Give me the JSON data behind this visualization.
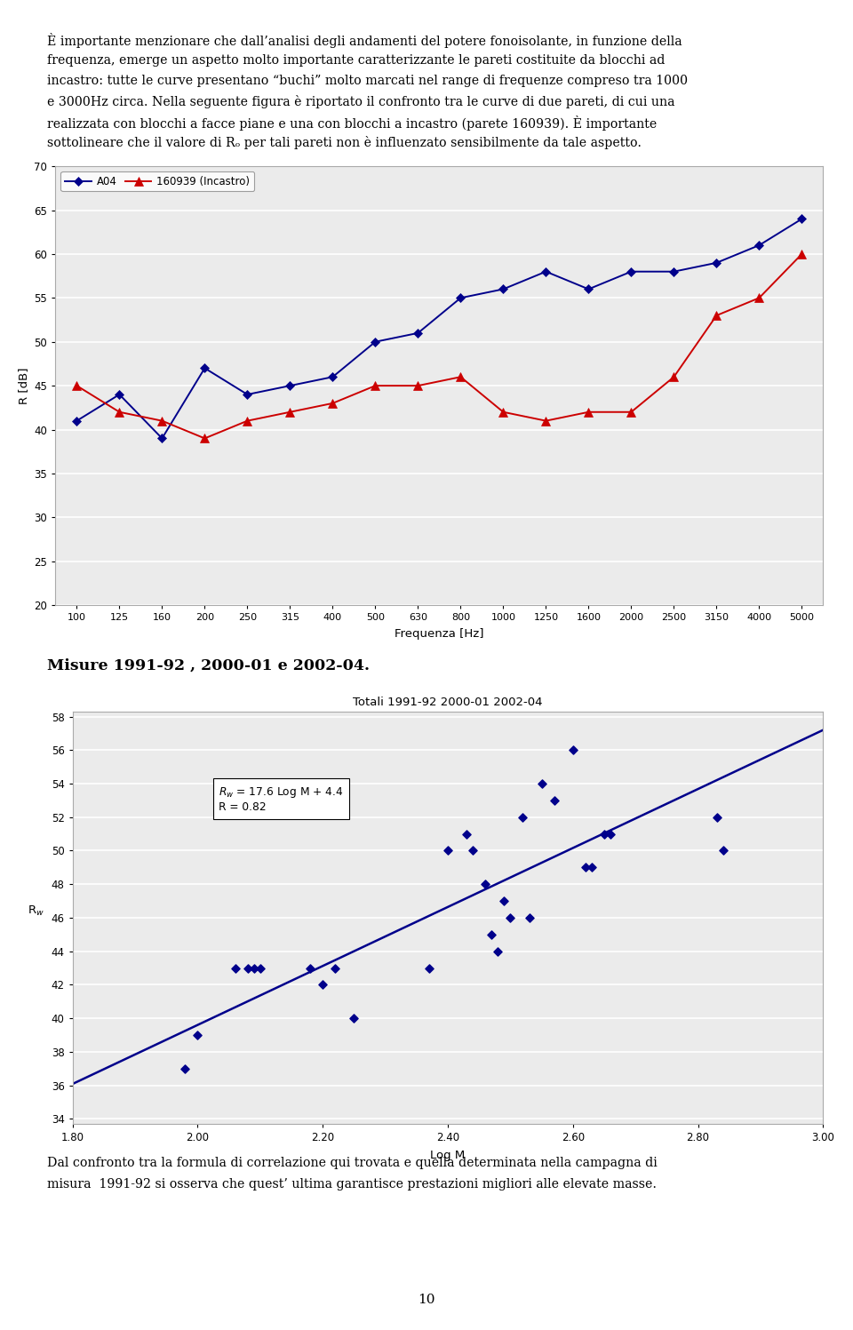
{
  "chart1": {
    "freq": [
      100,
      125,
      160,
      200,
      250,
      315,
      400,
      500,
      630,
      800,
      1000,
      1250,
      1600,
      2000,
      2500,
      3150,
      4000,
      5000
    ],
    "A04": [
      41,
      44,
      39,
      47,
      44,
      45,
      46,
      50,
      51,
      55,
      56,
      58,
      56,
      58,
      58,
      59,
      61,
      64
    ],
    "incastro": [
      45,
      42,
      41,
      39,
      41,
      42,
      43,
      45,
      45,
      46,
      42,
      41,
      42,
      42,
      46,
      53,
      55,
      60
    ],
    "ylabel": "R [dB]",
    "xlabel": "Frequenza [Hz]",
    "ylim": [
      20,
      70
    ],
    "yticks": [
      20,
      25,
      30,
      35,
      40,
      45,
      50,
      55,
      60,
      65,
      70
    ],
    "legend_A04": "A04",
    "legend_incastro": "160939 (Incastro)",
    "color_A04": "#00008B",
    "color_incastro": "#CC0000"
  },
  "section_title": "Misure 1991-92 , 2000-01 e 2002-04.",
  "chart2": {
    "title": "Totali 1991-92 2000-01 2002-04",
    "xlabel": "Log M",
    "ylabel": "Rw",
    "xlim": [
      1.8,
      3.0
    ],
    "ylim": [
      34,
      58
    ],
    "yticks": [
      34,
      36,
      38,
      40,
      42,
      44,
      46,
      48,
      50,
      52,
      54,
      56,
      58
    ],
    "xticks": [
      1.8,
      2.0,
      2.2,
      2.4,
      2.6,
      2.8,
      3.0
    ],
    "scatter_x": [
      1.98,
      2.0,
      2.06,
      2.08,
      2.09,
      2.1,
      2.18,
      2.2,
      2.22,
      2.25,
      2.37,
      2.4,
      2.43,
      2.44,
      2.46,
      2.47,
      2.48,
      2.49,
      2.5,
      2.52,
      2.53,
      2.55,
      2.57,
      2.6,
      2.62,
      2.63,
      2.65,
      2.66,
      2.83,
      2.84
    ],
    "scatter_y": [
      37,
      39,
      43,
      43,
      43,
      43,
      43,
      42,
      43,
      40,
      43,
      50,
      51,
      50,
      48,
      45,
      44,
      47,
      46,
      52,
      46,
      54,
      53,
      56,
      49,
      49,
      51,
      51,
      52,
      50
    ],
    "annotation_line1": "Rw = 17.6 Log M + 4.4",
    "annotation_line2": "R = 0.82",
    "color_scatter": "#00008B",
    "color_line": "#00008B"
  },
  "page_number": "10",
  "background_color": "#ffffff",
  "intro_lines": [
    "È importante menzionare che dall’analisi degli andamenti del potere fonoisolante, in funzione della",
    "frequenza, emerge un aspetto molto importante caratterizzante le pareti costituite da blocchi ad",
    "incastro: tutte le curve presentano “buchi” molto marcati nel range di frequenze compreso tra 1000",
    "e 3000Hz circa. Nella seguente figura è riportato il confronto tra le curve di due pareti, di cui una",
    "realizzata con blocchi a facce piane e una con blocchi a incastro (parete 160939). È importante",
    "sottolineare che il valore di Rₒ per tali pareti non è influenzato sensibilmente da tale aspetto."
  ],
  "footer_lines": [
    "Dal confronto tra la formula di correlazione qui trovata e quella determinata nella campagna di",
    "misura  1991-92 si osserva che quest’ ultima garantisce prestazioni migliori alle elevate masse."
  ]
}
